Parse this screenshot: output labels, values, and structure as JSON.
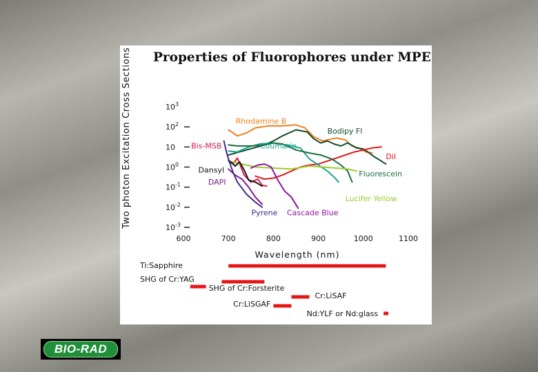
{
  "chart_data": {
    "type": "line",
    "title": "Properties of Fluorophores under MPE",
    "xlabel": "Wavelength (nm)",
    "ylabel": "Two photon Excitation Cross Sections (GM)",
    "xlim": [
      600,
      1100
    ],
    "ylim": [
      -3,
      3
    ],
    "y_scale": "log",
    "x_ticks": [
      600,
      700,
      800,
      900,
      1000,
      1100
    ],
    "y_ticks": [
      {
        "exp": 3,
        "label": "10",
        "sup": "3"
      },
      {
        "exp": 2,
        "label": "10",
        "sup": "2"
      },
      {
        "exp": 1,
        "label": "10",
        "sup": ""
      },
      {
        "exp": 0,
        "label": "10",
        "sup": "0"
      },
      {
        "exp": -1,
        "label": "10",
        "sup": "-1"
      },
      {
        "exp": -2,
        "label": "10",
        "sup": "-2"
      },
      {
        "exp": -3,
        "label": "10",
        "sup": "-3"
      }
    ],
    "series": [
      {
        "name": "Rhodamine B",
        "color": "#f07f1c",
        "label_at": [
          716,
          2.16
        ],
        "points": [
          [
            700,
            1.85
          ],
          [
            720,
            1.55
          ],
          [
            740,
            1.7
          ],
          [
            760,
            1.95
          ],
          [
            790,
            2.05
          ],
          [
            820,
            2.05
          ],
          [
            850,
            2.1
          ],
          [
            870,
            1.95
          ],
          [
            890,
            1.5
          ],
          [
            910,
            1.3
          ],
          [
            940,
            1.45
          ],
          [
            960,
            1.35
          ],
          [
            975,
            1.05
          ],
          [
            990,
            0.95
          ],
          [
            1005,
            0.75
          ],
          [
            1020,
            0.7
          ]
        ]
      },
      {
        "name": "Bodipy Fl",
        "color": "#0e4a2a",
        "label_at": [
          920,
          1.67
        ],
        "points": [
          [
            700,
            0.6
          ],
          [
            740,
            0.85
          ],
          [
            780,
            1.1
          ],
          [
            800,
            1.3
          ],
          [
            820,
            1.55
          ],
          [
            850,
            1.85
          ],
          [
            875,
            1.75
          ],
          [
            890,
            1.4
          ],
          [
            905,
            1.2
          ],
          [
            920,
            1.3
          ],
          [
            935,
            1.15
          ],
          [
            950,
            1.05
          ],
          [
            965,
            1.2
          ],
          [
            985,
            0.95
          ],
          [
            1000,
            0.9
          ],
          [
            1010,
            0.75
          ],
          [
            1025,
            0.5
          ],
          [
            1040,
            0.3
          ],
          [
            1050,
            0.15
          ]
        ]
      },
      {
        "name": "DiI",
        "color": "#e01818",
        "label_at": [
          1050,
          0.4
        ],
        "points": [
          [
            760,
            -0.45
          ],
          [
            780,
            -0.6
          ],
          [
            800,
            -0.55
          ],
          [
            820,
            -0.4
          ],
          [
            840,
            -0.2
          ],
          [
            860,
            0
          ],
          [
            880,
            0.1
          ],
          [
            900,
            0.15
          ],
          [
            920,
            0.3
          ],
          [
            940,
            0.45
          ],
          [
            960,
            0.6
          ],
          [
            980,
            0.75
          ],
          [
            1000,
            0.85
          ],
          [
            1020,
            0.95
          ],
          [
            1040,
            1
          ]
        ]
      },
      {
        "name": "Bis-MSB",
        "color": "#e0164f",
        "label_at": [
          617,
          0.92
        ],
        "points": [
          [
            700,
            0.3
          ],
          [
            710,
            0.15
          ],
          [
            720,
            0.45
          ],
          [
            735,
            -0.4
          ],
          [
            750,
            -0.75
          ],
          [
            765,
            -0.6
          ],
          [
            775,
            -0.9
          ],
          [
            785,
            -0.95
          ]
        ]
      },
      {
        "name": "Coumarin",
        "color": "#1aa391",
        "label_at": [
          770,
          0.92
        ],
        "points": [
          [
            700,
            0.8
          ],
          [
            720,
            0.75
          ],
          [
            745,
            1
          ],
          [
            770,
            1.15
          ],
          [
            800,
            1.2
          ],
          [
            830,
            1.1
          ],
          [
            860,
            0.95
          ],
          [
            880,
            0.4
          ],
          [
            900,
            0.1
          ],
          [
            920,
            -0.2
          ],
          [
            935,
            -0.5
          ],
          [
            945,
            -0.75
          ]
        ]
      },
      {
        "name": "Fluorescein",
        "color": "#196c3e",
        "label_at": [
          990,
          -0.47
        ],
        "points": [
          [
            700,
            1.1
          ],
          [
            720,
            1.05
          ],
          [
            750,
            1.05
          ],
          [
            780,
            1.1
          ],
          [
            800,
            1.2
          ],
          [
            820,
            1.15
          ],
          [
            850,
            0.85
          ],
          [
            880,
            0.7
          ],
          [
            905,
            0.6
          ],
          [
            930,
            0.4
          ],
          [
            950,
            0.1
          ],
          [
            965,
            -0.2
          ],
          [
            975,
            -0.75
          ]
        ]
      },
      {
        "name": "Lucifer Yellow",
        "color": "#9acc2c",
        "label_at": [
          960,
          -1.7
        ],
        "points": [
          [
            700,
            0.3
          ],
          [
            730,
            0.15
          ],
          [
            760,
            0
          ],
          [
            800,
            -0.05
          ],
          [
            840,
            -0.1
          ],
          [
            880,
            0.05
          ],
          [
            910,
            0
          ],
          [
            940,
            -0.05
          ],
          [
            965,
            -0.1
          ],
          [
            985,
            -0.2
          ]
        ]
      },
      {
        "name": "Dansyl",
        "color": "#141414",
        "label_at": [
          633,
          -0.28
        ],
        "points": [
          [
            700,
            0.35
          ],
          [
            715,
            0.05
          ],
          [
            725,
            0.25
          ],
          [
            735,
            -0.15
          ],
          [
            745,
            -0.65
          ],
          [
            760,
            -0.75
          ],
          [
            775,
            -0.95
          ]
        ]
      },
      {
        "name": "DAPI",
        "color": "#7e1a8e",
        "label_at": [
          655,
          -0.87
        ],
        "points": [
          [
            700,
            -0.1
          ],
          [
            715,
            -0.4
          ],
          [
            730,
            -0.6
          ],
          [
            745,
            -1
          ],
          [
            760,
            -1.5
          ],
          [
            775,
            -1.85
          ]
        ]
      },
      {
        "name": "Pyrene",
        "color": "#3f2a8c",
        "label_at": [
          751,
          -2.4
        ],
        "points": [
          [
            690,
            1.3
          ],
          [
            695,
            0.8
          ],
          [
            700,
            0.4
          ],
          [
            710,
            -0.25
          ],
          [
            720,
            -0.75
          ],
          [
            730,
            -1.05
          ],
          [
            740,
            -1.35
          ],
          [
            760,
            -1.75
          ],
          [
            775,
            -2
          ]
        ]
      },
      {
        "name": "Cascade Blue",
        "color": "#8e129e",
        "label_at": [
          830,
          -2.4
        ],
        "points": [
          [
            750,
            -0.05
          ],
          [
            765,
            0.1
          ],
          [
            780,
            0.15
          ],
          [
            795,
            0
          ],
          [
            810,
            -0.65
          ],
          [
            825,
            -1.2
          ],
          [
            840,
            -1.5
          ],
          [
            855,
            -2.05
          ]
        ]
      }
    ],
    "lasers": [
      {
        "name": "Ti:Sapphire",
        "range": [
          700,
          1050
        ],
        "row": 0,
        "label_anchor": "left"
      },
      {
        "name": "SHG of Cr:YAG",
        "range": [
          685,
          780
        ],
        "row": 1,
        "label_anchor": "left"
      },
      {
        "name": "SHG of Cr:Forsterite",
        "range": [
          615,
          650
        ],
        "row": 2,
        "label_anchor": "right"
      },
      {
        "name": "Cr:LiSAF",
        "range": [
          840,
          880
        ],
        "row": 3,
        "label_anchor": "right"
      },
      {
        "name": "Cr:LiSGAF",
        "range": [
          800,
          840
        ],
        "row": 4,
        "label_anchor": "left"
      },
      {
        "name": "Nd:YLF or Nd:glass",
        "range": [
          1045,
          1055
        ],
        "row": 5,
        "label_anchor": "left"
      }
    ],
    "laser_color": "#e51616"
  },
  "logo": {
    "text": "BIO-RAD",
    "color": "#1f8f3a"
  }
}
